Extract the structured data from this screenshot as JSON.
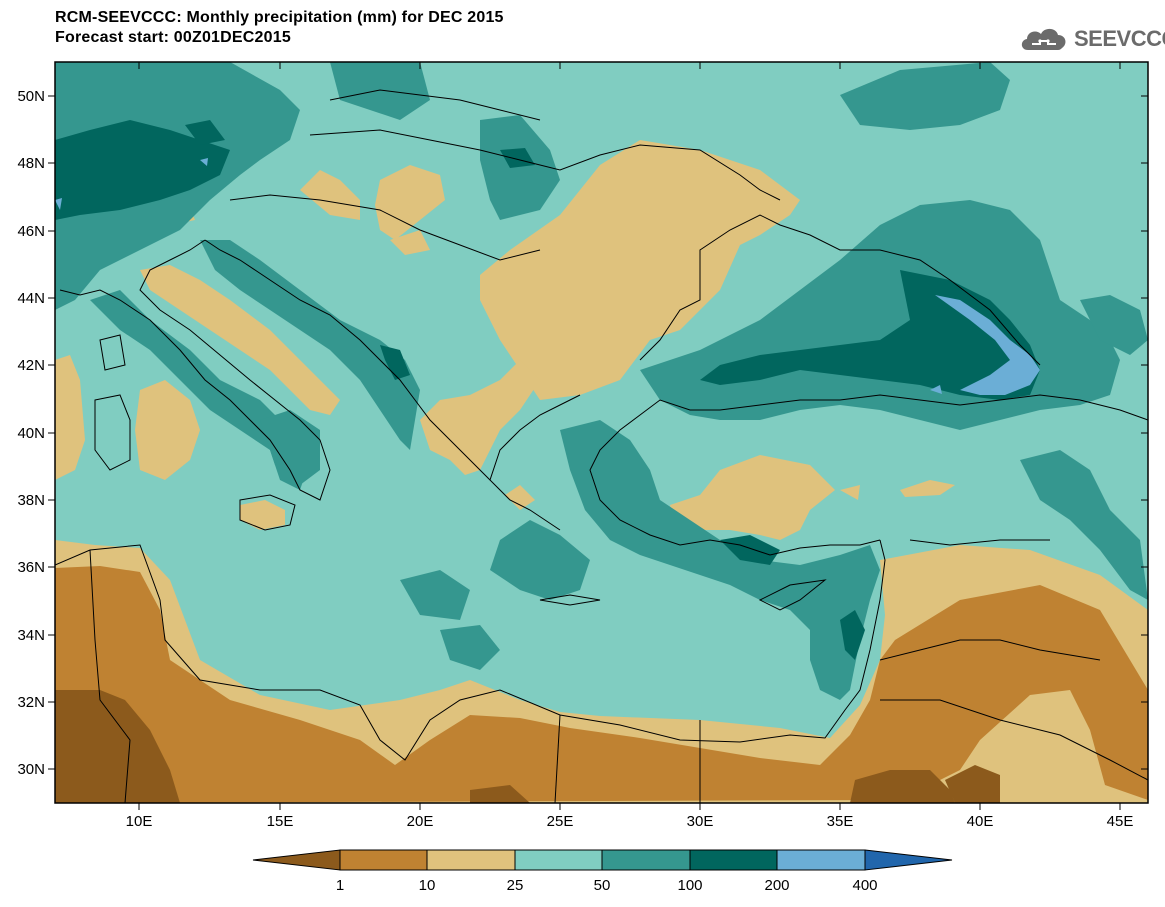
{
  "header": {
    "title": "RCM-SEEVCCC: Monthly precipitation (mm) for DEC 2015",
    "subtitle": "Forecast start: 00Z01DEC2015",
    "logo_text": "SEEVCCC"
  },
  "map": {
    "lat_ticks": [
      "50N",
      "48N",
      "46N",
      "44N",
      "42N",
      "40N",
      "38N",
      "36N",
      "34N",
      "32N",
      "30N"
    ],
    "lon_ticks": [
      "10E",
      "15E",
      "20E",
      "25E",
      "30E",
      "35E",
      "40E",
      "45E"
    ],
    "lat_range": [
      29,
      51
    ],
    "lon_range": [
      7,
      46
    ]
  },
  "legend": {
    "levels": [
      "1",
      "10",
      "25",
      "50",
      "100",
      "200",
      "400"
    ],
    "colors": [
      "#8c5a1c",
      "#bf8232",
      "#dfc27d",
      "#80cdc1",
      "#35978f",
      "#01665e",
      "#6baed6",
      "#2166ac"
    ]
  }
}
